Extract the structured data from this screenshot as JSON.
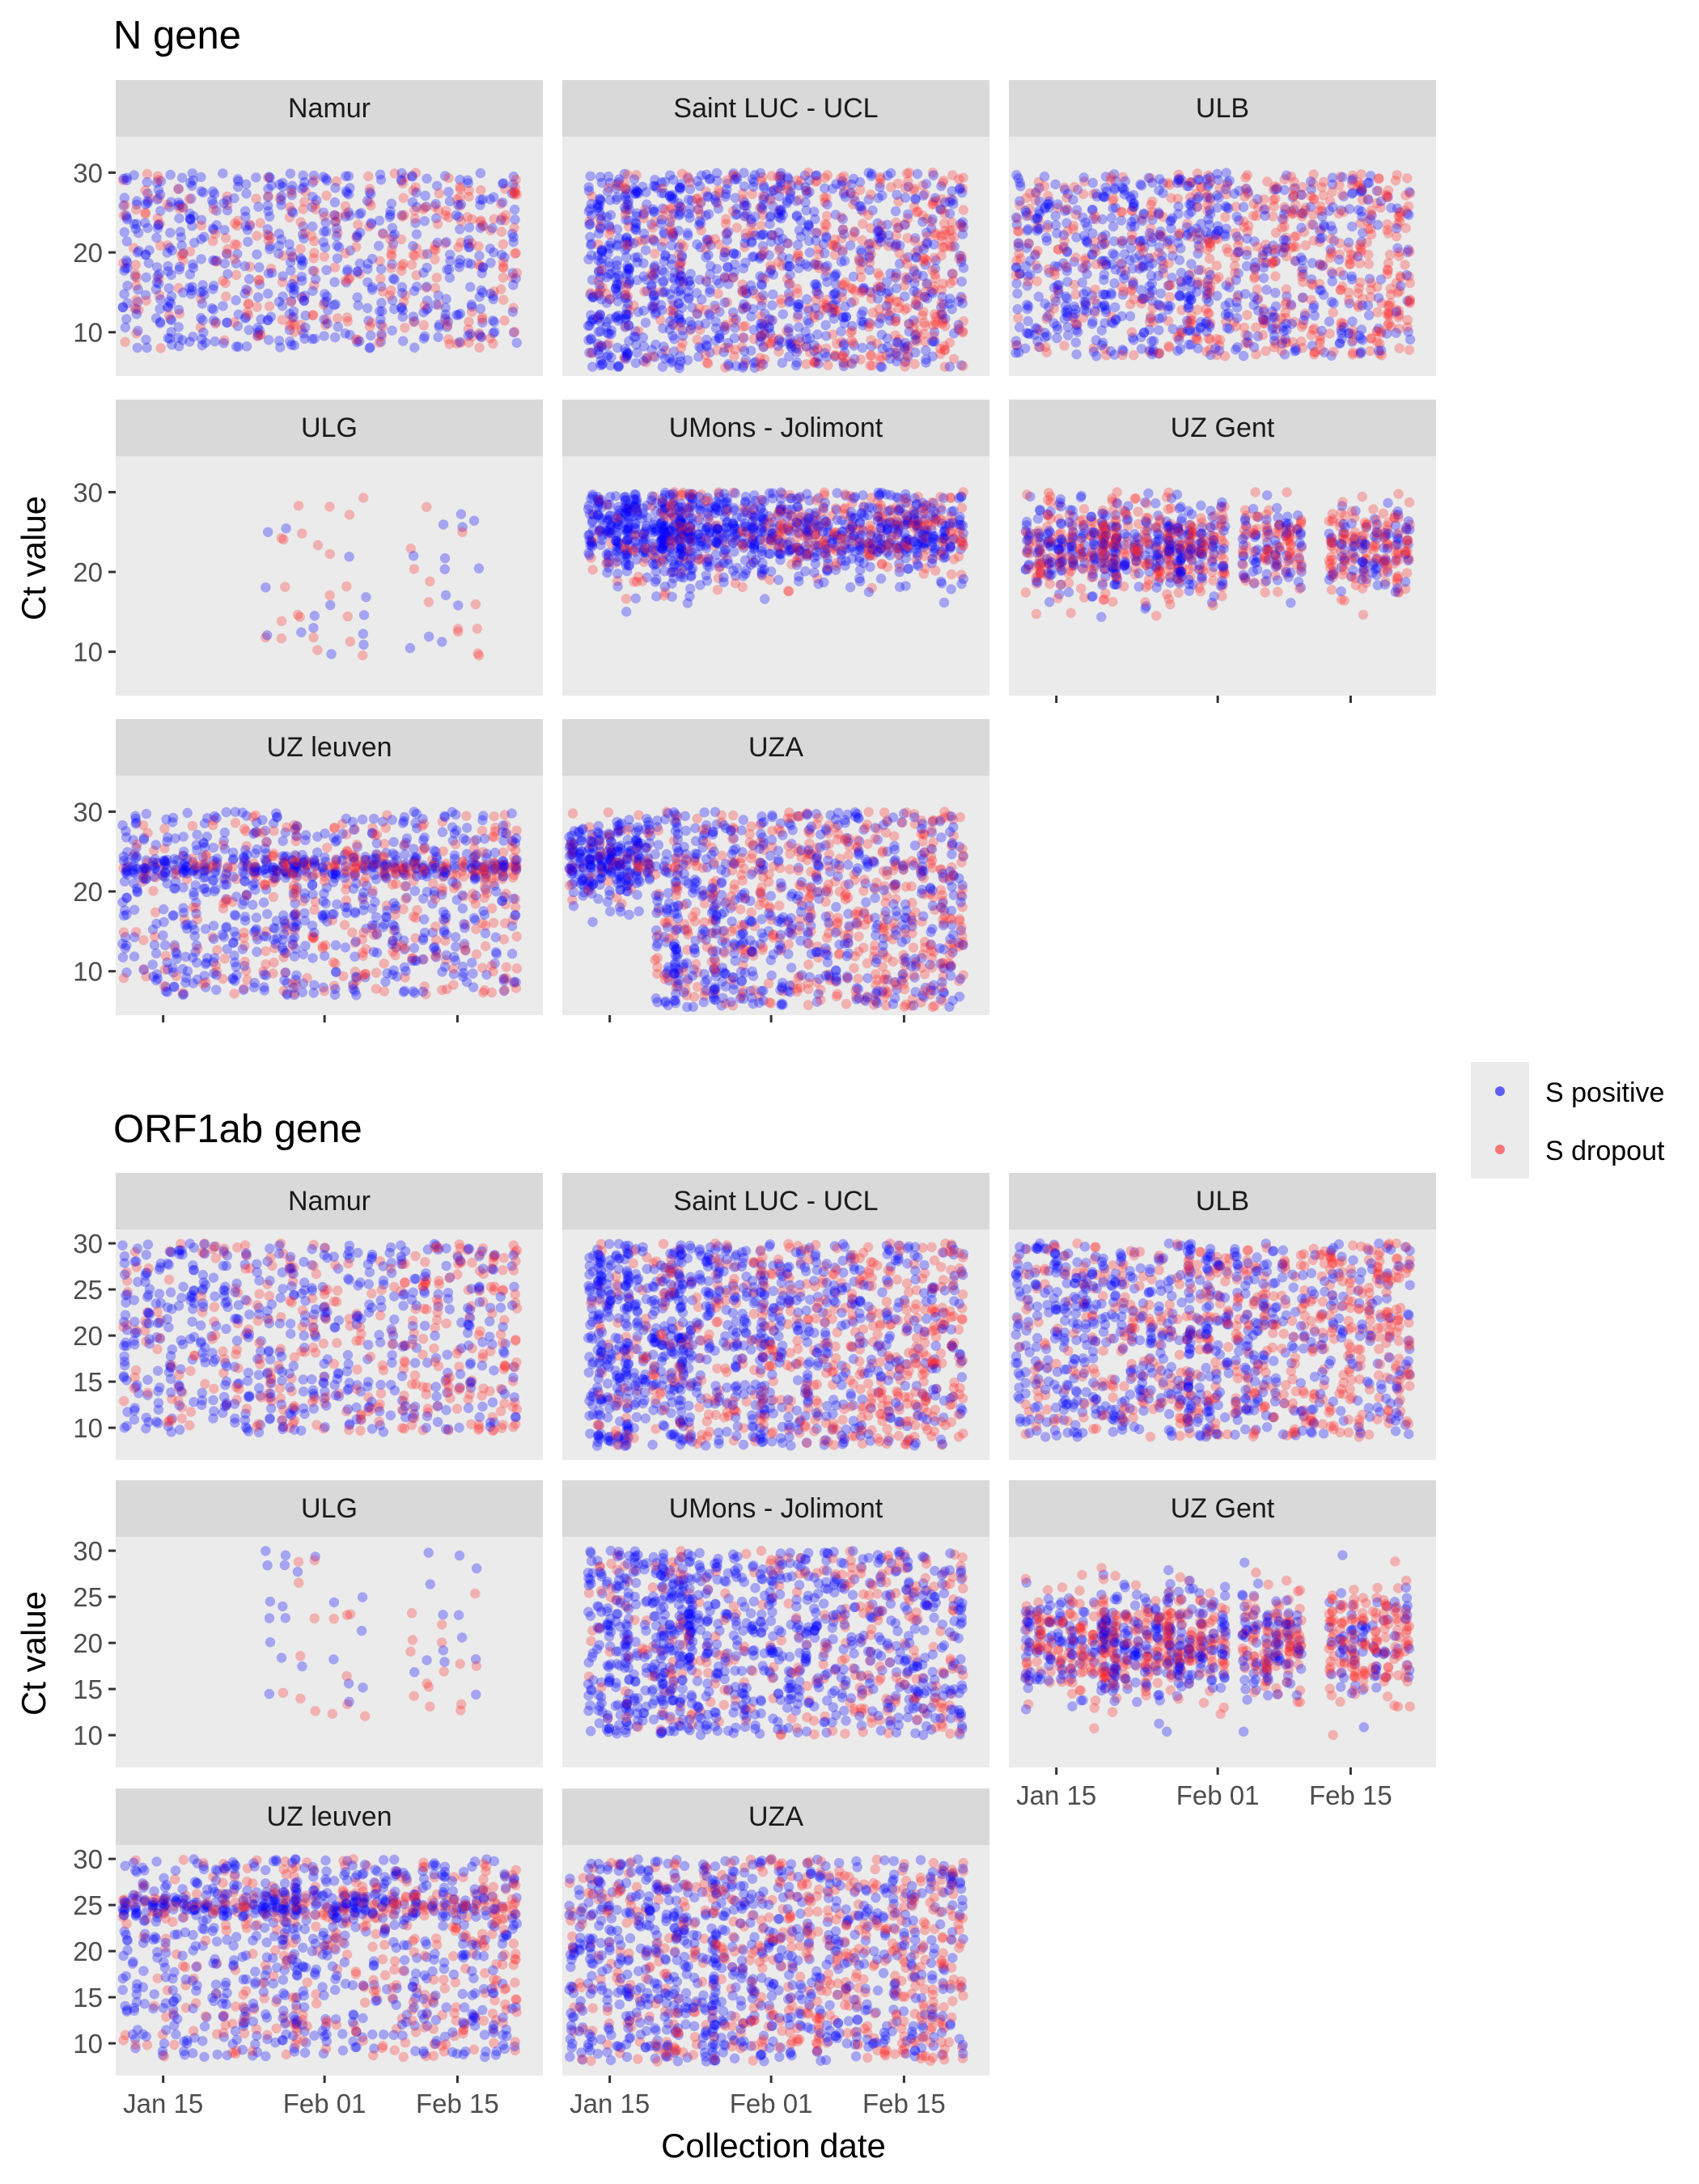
{
  "legend": {
    "entries": [
      {
        "label": "S positive",
        "color": "#0000ff"
      },
      {
        "label": "S dropout",
        "color": "#ff2a2a"
      }
    ]
  },
  "chart_data": [
    {
      "type": "scatter",
      "title": "N gene",
      "ylabel": "Ct value",
      "xlabel": "",
      "x_type": "date",
      "xlim": [
        "2021-01-10",
        "2021-02-24"
      ],
      "x_ticks": [
        {
          "date": "2021-01-15",
          "label": "Jan 15"
        },
        {
          "date": "2021-02-01",
          "label": "Feb 01"
        },
        {
          "date": "2021-02-15",
          "label": "Feb 15"
        }
      ],
      "ylim": [
        4.5,
        34.5
      ],
      "y_ticks": [
        10,
        20,
        30
      ],
      "grid": false,
      "point_alpha": 0.3,
      "series_names": [
        "S positive",
        "S dropout"
      ],
      "panels": [
        {
          "label": "Namur",
          "x_range": [
            "2021-01-11",
            "2021-02-21"
          ],
          "y_range": [
            8,
            30
          ],
          "dropout_share": [
            0.2,
            0.55
          ],
          "dense_days": [
            "2021-01-29"
          ],
          "columns": 36,
          "per_column": 24
        },
        {
          "label": "Saint LUC - UCL",
          "x_range": [
            "2021-01-13",
            "2021-02-21"
          ],
          "y_range": [
            5.5,
            30
          ],
          "dropout_share": [
            0.15,
            0.6
          ],
          "dense_days": [
            "2021-01-14",
            "2021-01-17",
            "2021-01-22",
            "2021-01-31"
          ],
          "columns": 42,
          "per_column": 32
        },
        {
          "label": "ULB",
          "x_range": [
            "2021-01-11",
            "2021-02-21"
          ],
          "y_range": [
            7,
            30
          ],
          "dropout_share": [
            0.2,
            0.65
          ],
          "dense_days": [
            "2021-01-29",
            "2021-01-31"
          ],
          "columns": 42,
          "per_column": 30
        },
        {
          "label": "ULG",
          "x_range": [
            "2021-01-26",
            "2021-02-17"
          ],
          "y_range": [
            9.5,
            30
          ],
          "dropout_share": [
            0.45,
            0.6
          ],
          "dense_days": [],
          "columns": 14,
          "per_column": 5,
          "gaps": [
            [
              "2021-01-27",
              "2021-01-27"
            ],
            [
              "2021-02-06",
              "2021-02-09"
            ]
          ]
        },
        {
          "label": "UMons - Jolimont",
          "x_range": [
            "2021-01-13",
            "2021-02-21"
          ],
          "y_range": [
            14,
            30
          ],
          "ylike_center": 25,
          "dropout_share": [
            0.15,
            0.4
          ],
          "dense_days": [
            "2021-01-17",
            "2021-01-21",
            "2021-01-23"
          ],
          "columns": 42,
          "per_column": 28
        },
        {
          "label": "UZ Gent",
          "x_range": [
            "2021-01-12",
            "2021-02-21"
          ],
          "y_range": [
            14,
            30
          ],
          "ylike_center": 23,
          "dropout_share": [
            0.45,
            0.6
          ],
          "dense_days": [
            "2021-01-20",
            "2021-01-21",
            "2021-01-27",
            "2021-01-28"
          ],
          "columns": 36,
          "per_column": 30,
          "gaps": [
            [
              "2021-02-02",
              "2021-02-03"
            ],
            [
              "2021-02-11",
              "2021-02-12"
            ]
          ]
        },
        {
          "label": "UZ leuven",
          "x_range": [
            "2021-01-11",
            "2021-02-21"
          ],
          "y_range": [
            7,
            30
          ],
          "band_y": 23,
          "dropout_share": [
            0.2,
            0.5
          ],
          "dense_days": [
            "2021-01-28",
            "2021-01-29"
          ],
          "columns": 40,
          "per_column": 30
        },
        {
          "label": "UZA",
          "x_range": [
            "2021-01-11",
            "2021-02-21"
          ],
          "y_range": [
            5.5,
            30
          ],
          "dropout_share": [
            0.2,
            0.6
          ],
          "dense_days": [
            "2021-01-22",
            "2021-01-26"
          ],
          "columns": 42,
          "per_column": 32,
          "early_band": {
            "until": "2021-01-20",
            "y": 24
          }
        }
      ]
    },
    {
      "type": "scatter",
      "title": "ORF1ab gene",
      "ylabel": "Ct value",
      "xlabel": "Collection date",
      "x_type": "date",
      "xlim": [
        "2021-01-10",
        "2021-02-24"
      ],
      "x_ticks": [
        {
          "date": "2021-01-15",
          "label": "Jan 15"
        },
        {
          "date": "2021-02-01",
          "label": "Feb 01"
        },
        {
          "date": "2021-02-15",
          "label": "Feb 15"
        }
      ],
      "ylim": [
        6.5,
        31.5
      ],
      "y_ticks": [
        10,
        15,
        20,
        25,
        30
      ],
      "grid": false,
      "point_alpha": 0.3,
      "series_names": [
        "S positive",
        "S dropout"
      ],
      "panels": [
        {
          "label": "Namur",
          "x_range": [
            "2021-01-11",
            "2021-02-21"
          ],
          "y_range": [
            9.5,
            30
          ],
          "dropout_share": [
            0.2,
            0.55
          ],
          "dense_days": [
            "2021-01-29"
          ],
          "columns": 36,
          "per_column": 24
        },
        {
          "label": "Saint LUC - UCL",
          "x_range": [
            "2021-01-13",
            "2021-02-21"
          ],
          "y_range": [
            8,
            30
          ],
          "dropout_share": [
            0.15,
            0.6
          ],
          "dense_days": [
            "2021-01-14",
            "2021-01-17",
            "2021-01-22",
            "2021-01-31"
          ],
          "columns": 42,
          "per_column": 32
        },
        {
          "label": "ULB",
          "x_range": [
            "2021-01-11",
            "2021-02-21"
          ],
          "y_range": [
            9,
            30
          ],
          "dropout_share": [
            0.2,
            0.65
          ],
          "dense_days": [
            "2021-01-29",
            "2021-01-31"
          ],
          "columns": 42,
          "per_column": 30
        },
        {
          "label": "ULG",
          "x_range": [
            "2021-01-26",
            "2021-02-17"
          ],
          "y_range": [
            12,
            30
          ],
          "dropout_share": [
            0.45,
            0.6
          ],
          "dense_days": [],
          "columns": 14,
          "per_column": 5,
          "gaps": [
            [
              "2021-01-27",
              "2021-01-27"
            ],
            [
              "2021-02-06",
              "2021-02-09"
            ]
          ]
        },
        {
          "label": "UMons - Jolimont",
          "x_range": [
            "2021-01-13",
            "2021-02-21"
          ],
          "y_range": [
            10,
            30
          ],
          "dropout_share": [
            0.15,
            0.4
          ],
          "dense_days": [
            "2021-01-17",
            "2021-01-21",
            "2021-01-23"
          ],
          "columns": 42,
          "per_column": 26
        },
        {
          "label": "UZ Gent",
          "x_range": [
            "2021-01-12",
            "2021-02-21"
          ],
          "y_range": [
            10,
            30
          ],
          "ylike_center": 20,
          "dropout_share": [
            0.45,
            0.6
          ],
          "dense_days": [
            "2021-01-20",
            "2021-01-21",
            "2021-01-27",
            "2021-01-28"
          ],
          "columns": 36,
          "per_column": 30,
          "gaps": [
            [
              "2021-02-02",
              "2021-02-03"
            ],
            [
              "2021-02-11",
              "2021-02-12"
            ]
          ]
        },
        {
          "label": "UZ leuven",
          "x_range": [
            "2021-01-11",
            "2021-02-21"
          ],
          "y_range": [
            8.5,
            30
          ],
          "band_y": 25,
          "dropout_share": [
            0.2,
            0.5
          ],
          "dense_days": [
            "2021-01-28",
            "2021-01-29"
          ],
          "columns": 40,
          "per_column": 30
        },
        {
          "label": "UZA",
          "x_range": [
            "2021-01-11",
            "2021-02-21"
          ],
          "y_range": [
            8,
            30
          ],
          "dropout_share": [
            0.2,
            0.6
          ],
          "dense_days": [
            "2021-01-22",
            "2021-01-26"
          ],
          "columns": 42,
          "per_column": 30
        }
      ]
    }
  ]
}
